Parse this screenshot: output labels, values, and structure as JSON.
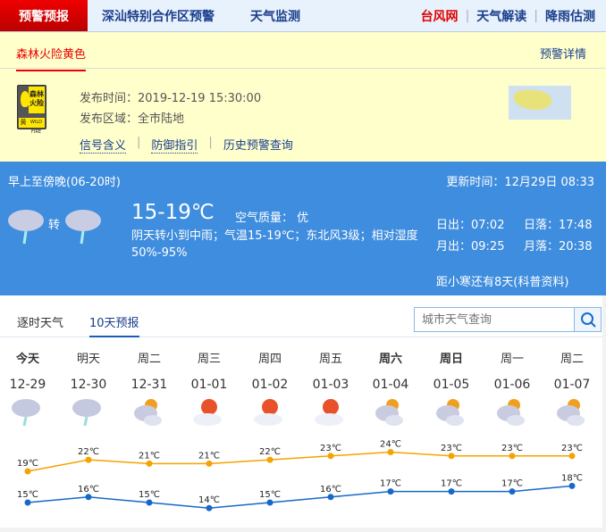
{
  "nav": {
    "active": "预警预报",
    "items": [
      "深汕特别合作区预警",
      "天气监测"
    ],
    "right": [
      {
        "label": "台风网",
        "color": "#e00000"
      },
      {
        "label": "天气解读",
        "color": "#1a3e8c"
      },
      {
        "label": "降雨估测",
        "color": "#1a3e8c"
      }
    ]
  },
  "warning": {
    "tab": "森林火险黄色",
    "detail": "预警详情",
    "signal": {
      "top": "森林火险",
      "level": "黄",
      "en": "WILD FIRE"
    },
    "time_label": "发布时间：",
    "time": "2019-12-19 15:30:00",
    "area_label": "发布区域：",
    "area": "全市陆地",
    "links": [
      "信号含义",
      "防御指引",
      "历史预警查询"
    ]
  },
  "today": {
    "period": "早上至傍晚(06-20时)",
    "updated": "更新时间：12月29日 08:33",
    "turn": "转",
    "icons": [
      "rain-cloud-icon",
      "rain-cloud-icon"
    ],
    "temp": "15-19℃",
    "aqi": "空气质量：  优",
    "desc": "阴天转小到中雨；气温15-19℃；东北风3级；相对湿度50%-95%",
    "sunrise": "日出：07:02",
    "sunset": "日落：17:48",
    "moonrise": "月出：09:25",
    "moonset": "月落：20:38",
    "solar_term": "距小寒还有8天(科普资料)"
  },
  "forecast": {
    "tabs": [
      "逐时天气",
      "10天预报"
    ],
    "active_tab": 1,
    "search_placeholder": "城市天气查询",
    "days": [
      {
        "name": "今天",
        "date": "12-29",
        "icon": "rain",
        "hi": "19℃",
        "lo": "15℃",
        "bold": true
      },
      {
        "name": "明天",
        "date": "12-30",
        "icon": "rain",
        "hi": "22℃",
        "lo": "16℃"
      },
      {
        "name": "周二",
        "date": "12-31",
        "icon": "partly-cloudy",
        "hi": "21℃",
        "lo": "15℃"
      },
      {
        "name": "周三",
        "date": "01-01",
        "icon": "sunny-cloudy",
        "hi": "21℃",
        "lo": "14℃"
      },
      {
        "name": "周四",
        "date": "01-02",
        "icon": "sunny-cloudy",
        "hi": "22℃",
        "lo": "15℃"
      },
      {
        "name": "周五",
        "date": "01-03",
        "icon": "sunny-cloudy",
        "hi": "23℃",
        "lo": "16℃"
      },
      {
        "name": "周六",
        "date": "01-04",
        "icon": "partly-cloudy",
        "hi": "24℃",
        "lo": "17℃",
        "bold": true
      },
      {
        "name": "周日",
        "date": "01-05",
        "icon": "partly-cloudy",
        "hi": "23℃",
        "lo": "17℃",
        "bold": true
      },
      {
        "name": "周一",
        "date": "01-06",
        "icon": "partly-cloudy",
        "hi": "23℃",
        "lo": "17℃"
      },
      {
        "name": "周二",
        "date": "01-07",
        "icon": "partly-cloudy",
        "hi": "23℃",
        "lo": "18℃"
      }
    ],
    "highs": [
      19,
      22,
      21,
      21,
      22,
      23,
      24,
      23,
      23,
      23
    ],
    "lows": [
      15,
      16,
      15,
      14,
      15,
      16,
      17,
      17,
      17,
      18
    ],
    "high_color": "#f5a300",
    "low_color": "#1769c9"
  }
}
